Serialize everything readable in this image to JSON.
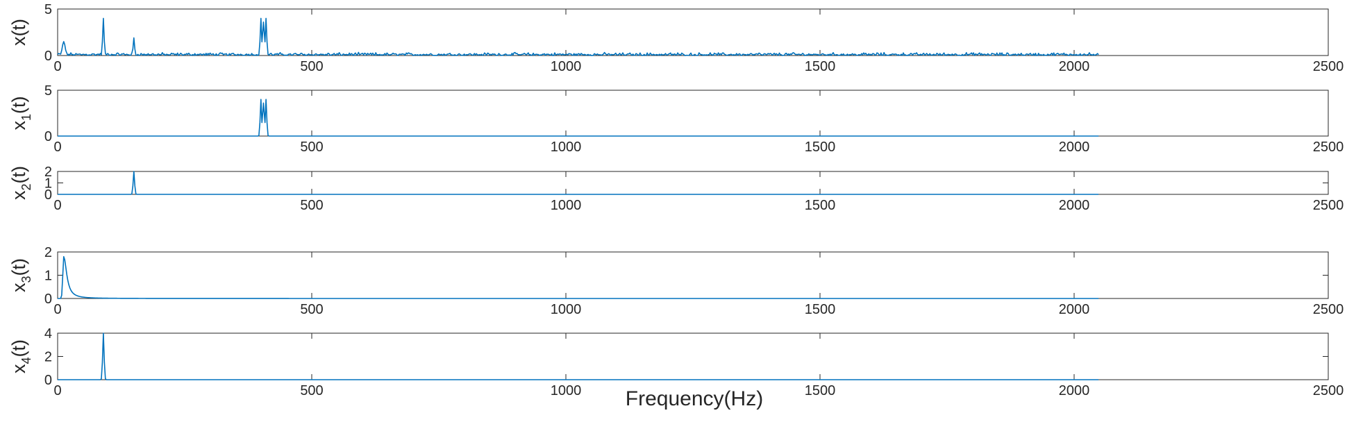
{
  "colors": {
    "series": "#0072BD",
    "axis": "#262626",
    "background": "#ffffff"
  },
  "chart_data": {
    "type": "line",
    "xlabel": "Frequency(Hz)",
    "xlim": [
      0,
      2500
    ],
    "xticks": [
      0,
      500,
      1000,
      1500,
      2000,
      2500
    ],
    "grid": false,
    "subplots": [
      {
        "ylabel_base": "x",
        "ylabel_sub": "",
        "ylabel_tail": "(t)",
        "ylim": [
          0,
          5
        ],
        "yticks": [
          0,
          5
        ],
        "noise_amplitude": 0.35,
        "peaks": [
          {
            "x": 12,
            "y": 1.5,
            "w": 4
          },
          {
            "x": 90,
            "y": 4.0,
            "w": 2
          },
          {
            "x": 150,
            "y": 1.9,
            "w": 2
          },
          {
            "x": 400,
            "y": 4.0,
            "w": 2
          },
          {
            "x": 405,
            "y": 3.6,
            "w": 2
          },
          {
            "x": 410,
            "y": 4.0,
            "w": 2
          }
        ]
      },
      {
        "ylabel_base": "x",
        "ylabel_sub": "1",
        "ylabel_tail": "(t)",
        "ylim": [
          0,
          5
        ],
        "yticks": [
          0,
          5
        ],
        "noise_amplitude": 0,
        "peaks": [
          {
            "x": 400,
            "y": 4.0,
            "w": 2
          },
          {
            "x": 405,
            "y": 3.6,
            "w": 2
          },
          {
            "x": 410,
            "y": 4.0,
            "w": 2
          }
        ]
      },
      {
        "ylabel_base": "x",
        "ylabel_sub": "2",
        "ylabel_tail": "(t)",
        "ylim": [
          0,
          2
        ],
        "yticks": [
          0,
          1,
          2
        ],
        "noise_amplitude": 0,
        "peaks": [
          {
            "x": 150,
            "y": 2.0,
            "w": 2
          }
        ]
      },
      {
        "ylabel_base": "x",
        "ylabel_sub": "3",
        "ylabel_tail": "(t)",
        "ylim": [
          0,
          2
        ],
        "yticks": [
          0,
          1,
          2
        ],
        "noise_amplitude": 0,
        "decay": {
          "x": 12,
          "y": 1.8,
          "tau": 7
        }
      },
      {
        "ylabel_base": "x",
        "ylabel_sub": "4",
        "ylabel_tail": "(t)",
        "ylim": [
          0,
          4
        ],
        "yticks": [
          0,
          2,
          4
        ],
        "noise_amplitude": 0,
        "peaks": [
          {
            "x": 90,
            "y": 4.0,
            "w": 2
          }
        ]
      }
    ],
    "data_x_max": 2048
  }
}
